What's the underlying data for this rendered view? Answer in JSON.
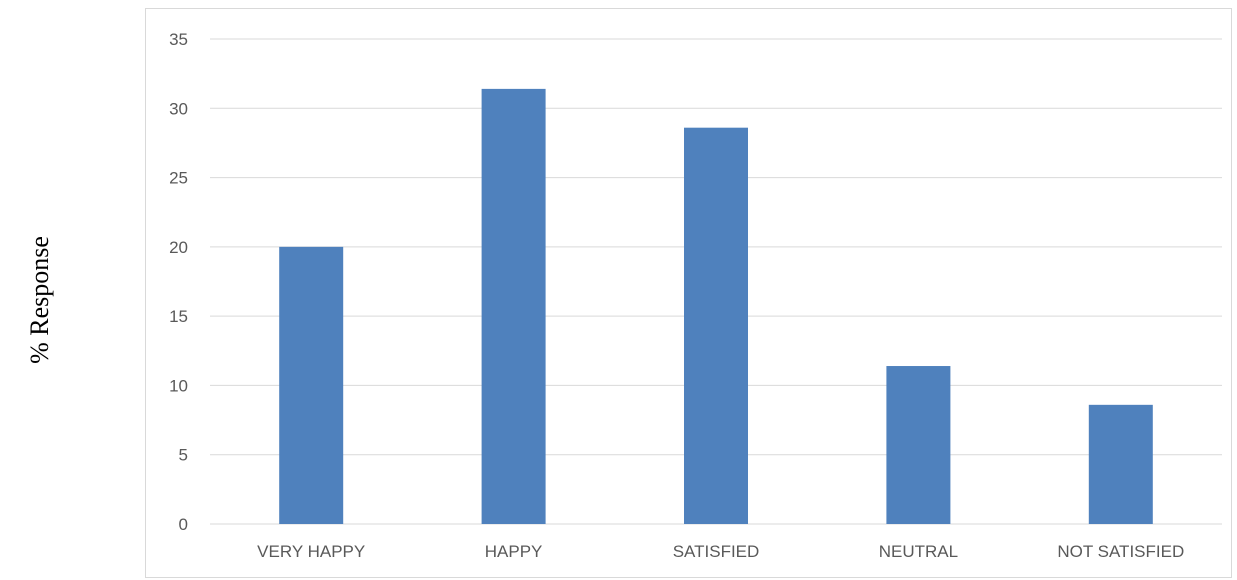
{
  "chart_data": {
    "type": "bar",
    "title": "",
    "xlabel": "",
    "ylabel": "% Response",
    "categories": [
      "VERY HAPPY",
      "HAPPY",
      "SATISFIED",
      "NEUTRAL",
      "NOT SATISFIED"
    ],
    "values": [
      20.0,
      31.4,
      28.6,
      11.4,
      8.6
    ],
    "ylim": [
      0,
      35
    ],
    "yticks": [
      0,
      5,
      10,
      15,
      20,
      25,
      30,
      35
    ],
    "grid": true,
    "legend": "none",
    "bar_color": "#4f81bd",
    "grid_color": "#d9d9d9",
    "text_color": "#595959"
  }
}
